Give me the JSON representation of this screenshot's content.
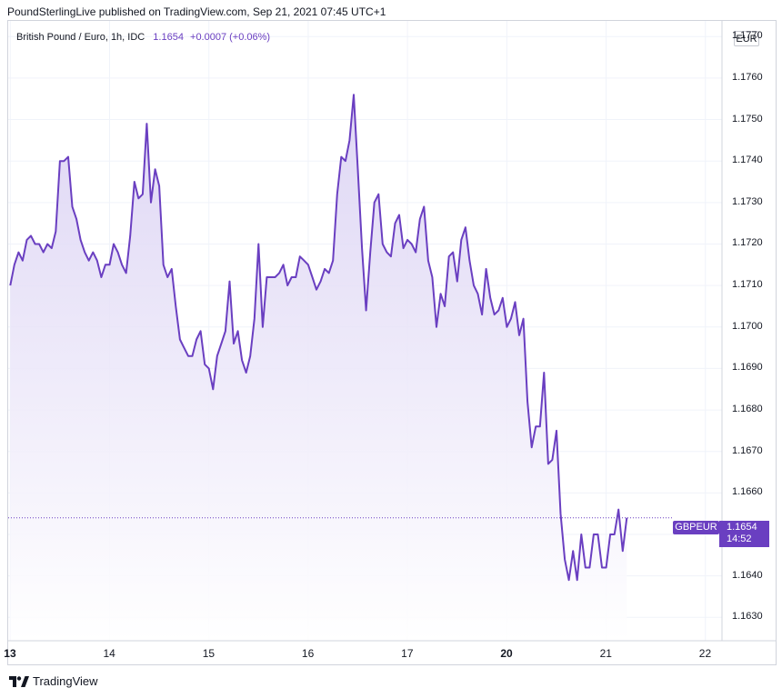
{
  "header": {
    "publish_line": "PoundSterlingLive published on TradingView.com, Sep 21, 2021 07:45 UTC+1"
  },
  "legend": {
    "symbol": "British Pound / Euro, 1h, IDC",
    "last": "1.1654",
    "change": "+0.0007 (+0.06%)"
  },
  "currency_label": "EUR",
  "last_price": {
    "symbol": "GBPEUR",
    "value": "1.1654",
    "countdown": "14:52"
  },
  "footer": {
    "brand": "TradingView"
  },
  "colors": {
    "line": "#6a3fc1",
    "fill_top": "#d9d0f3",
    "fill_bottom": "#ffffff",
    "grid": "#f0f3fa"
  },
  "chart_data": {
    "type": "area",
    "title": "British Pound / Euro, 1h, IDC",
    "ylim": [
      1.1627,
      1.1774
    ],
    "y_ticks": [
      "1.1630",
      "1.1640",
      "1.1650",
      "1.1660",
      "1.1670",
      "1.1680",
      "1.1690",
      "1.1700",
      "1.1710",
      "1.1720",
      "1.1730",
      "1.1740",
      "1.1750",
      "1.1760",
      "1.1770"
    ],
    "x_ticks": [
      {
        "label": "13",
        "x": 0,
        "bold": true
      },
      {
        "label": "14",
        "x": 24,
        "bold": false
      },
      {
        "label": "15",
        "x": 48,
        "bold": false
      },
      {
        "label": "16",
        "x": 72,
        "bold": false
      },
      {
        "label": "17",
        "x": 96,
        "bold": false
      },
      {
        "label": "20",
        "x": 120,
        "bold": true
      },
      {
        "label": "21",
        "x": 144,
        "bold": false
      },
      {
        "label": "22",
        "x": 168,
        "bold": false
      }
    ],
    "xlim": [
      -0.5,
      172
    ],
    "series": [
      {
        "values": [
          1.171,
          1.1715,
          1.1718,
          1.1716,
          1.1721,
          1.1722,
          1.172,
          1.172,
          1.1718,
          1.172,
          1.1719,
          1.1723,
          1.174,
          1.174,
          1.1741,
          1.1729,
          1.1726,
          1.1721,
          1.1718,
          1.1716,
          1.1718,
          1.1716,
          1.1712,
          1.1715,
          1.1715,
          1.172,
          1.1718,
          1.1715,
          1.1713,
          1.1722,
          1.1735,
          1.1731,
          1.1732,
          1.1749,
          1.173,
          1.1738,
          1.1734,
          1.1715,
          1.1712,
          1.1714,
          1.1705,
          1.1697,
          1.1695,
          1.1693,
          1.1693,
          1.1697,
          1.1699,
          1.1691,
          1.169,
          1.1685,
          1.1693,
          1.1696,
          1.1699,
          1.1711,
          1.1696,
          1.1699,
          1.1692,
          1.1689,
          1.1693,
          1.1702,
          1.172,
          1.17,
          1.1712,
          1.1712,
          1.1712,
          1.1713,
          1.1715,
          1.171,
          1.1712,
          1.1712,
          1.1717,
          1.1716,
          1.1715,
          1.1712,
          1.1709,
          1.1711,
          1.1714,
          1.1713,
          1.1716,
          1.1732,
          1.1741,
          1.174,
          1.1745,
          1.1756,
          1.1738,
          1.1719,
          1.1704,
          1.1718,
          1.173,
          1.1732,
          1.172,
          1.1718,
          1.1717,
          1.1725,
          1.1727,
          1.1719,
          1.1721,
          1.172,
          1.1718,
          1.1726,
          1.1729,
          1.1716,
          1.1712,
          1.17,
          1.1708,
          1.1705,
          1.1717,
          1.1718,
          1.1711,
          1.1721,
          1.1724,
          1.1716,
          1.171,
          1.1708,
          1.1703,
          1.1714,
          1.1707,
          1.1703,
          1.1704,
          1.1707,
          1.17,
          1.1702,
          1.1706,
          1.1698,
          1.1702,
          1.1682,
          1.1671,
          1.1676,
          1.1676,
          1.1689,
          1.1667,
          1.1668,
          1.1675,
          1.1655,
          1.1644,
          1.1639,
          1.1646,
          1.1639,
          1.165,
          1.1642,
          1.1642,
          1.165,
          1.165,
          1.1642,
          1.1642,
          1.165,
          1.165,
          1.1656,
          1.1646,
          1.1654
        ]
      }
    ]
  }
}
